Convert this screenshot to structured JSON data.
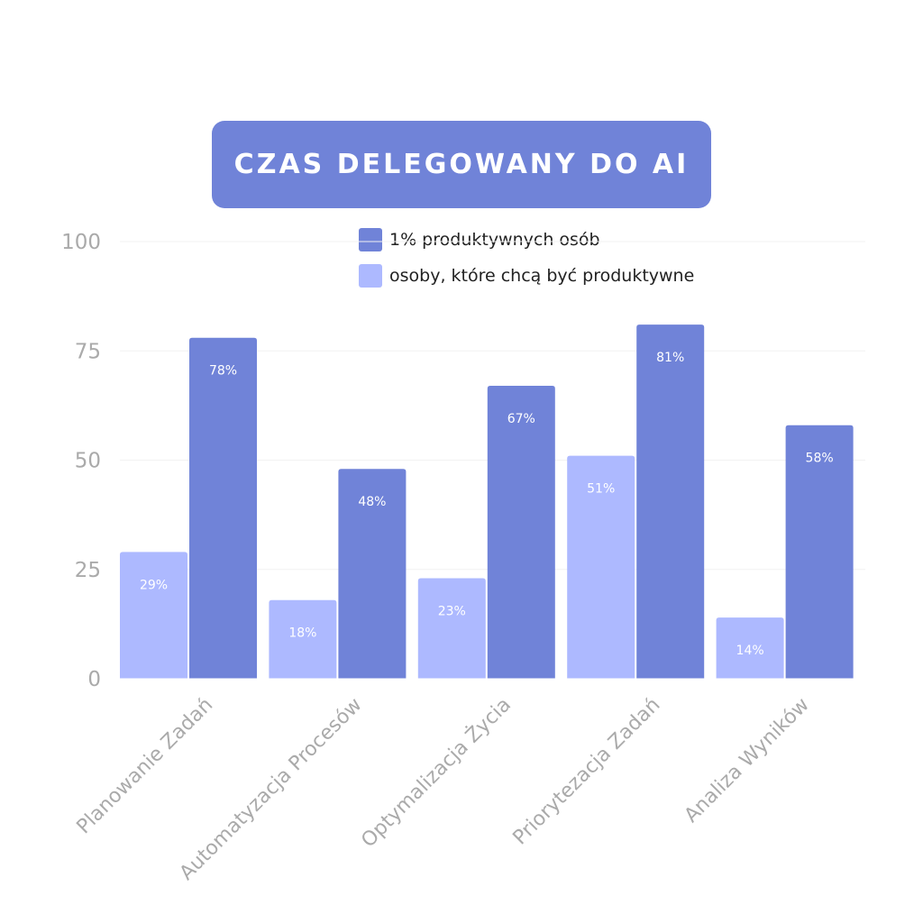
{
  "colors": {
    "title_bg": "#7083d8",
    "series_dark": "#7083d8",
    "series_light": "#adb9ff",
    "axis_text": "#aaaaaa",
    "bar_label": "#ffffff"
  },
  "chart_data": {
    "type": "bar",
    "title": "CZAS DELEGOWANY DO AI",
    "categories": [
      "Planowanie Zadań",
      "Automatyzacja Procesów",
      "Optymalizacja Życia",
      "Priorytezacja Zadań",
      "Analiza Wyników"
    ],
    "series": [
      {
        "name": "osoby, które chcą być produktywne",
        "values": [
          29,
          18,
          23,
          51,
          14
        ],
        "labels": [
          "29%",
          "18%",
          "23%",
          "51%",
          "14%"
        ]
      },
      {
        "name": "1% produktywnych osób",
        "values": [
          78,
          48,
          67,
          81,
          58
        ],
        "labels": [
          "78%",
          "48%",
          "67%",
          "81%",
          "58%"
        ]
      }
    ],
    "ylim": [
      0,
      100
    ],
    "yticks": [
      0,
      25,
      50,
      75,
      100
    ],
    "grid": true,
    "legend_position": "top",
    "legend_order": [
      1,
      0
    ]
  }
}
